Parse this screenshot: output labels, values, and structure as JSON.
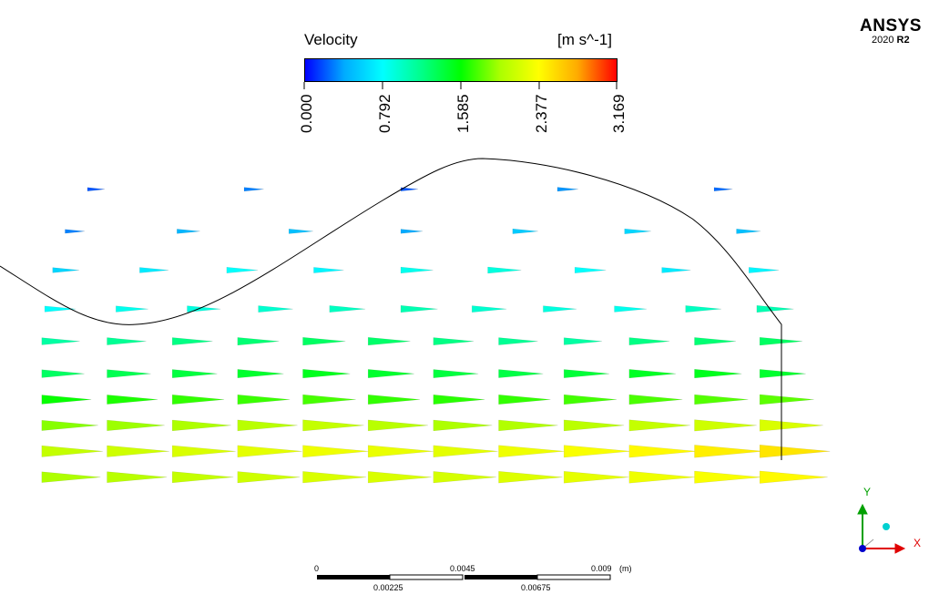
{
  "legend": {
    "title": "Velocity",
    "unit": "[m s^-1]",
    "ticks": [
      "0.000",
      "0.792",
      "1.585",
      "2.377",
      "3.169"
    ],
    "colormap": [
      "#0000ff",
      "#00aaff",
      "#00ffff",
      "#00ff88",
      "#00ff00",
      "#aaff00",
      "#ffff00",
      "#ffaa00",
      "#ff0000"
    ]
  },
  "logo": {
    "name": "ANSYS",
    "year": "2020",
    "release": "R2"
  },
  "scale_bar": {
    "top_labels": [
      "0",
      "0.0045",
      "0.009"
    ],
    "bottom_labels": [
      "0.00225",
      "0.00675"
    ],
    "unit": "(m)"
  },
  "axes": {
    "x_label": "X",
    "y_label": "Y",
    "x_color": "#e00000",
    "y_color": "#00a000",
    "z_color": "#0000cc",
    "marker_color": "#00d0d0"
  },
  "vector_plot": {
    "min_velocity": 0.0,
    "max_velocity": 3.169,
    "rows": [
      {
        "band": 0.05,
        "values": [
          0.2,
          0.3,
          0.2,
          0.35,
          0.25
        ]
      },
      {
        "band": 0.18,
        "values": [
          0.3,
          0.45,
          0.5,
          0.4,
          0.55,
          0.6,
          0.5
        ]
      },
      {
        "band": 0.3,
        "values": [
          0.6,
          0.7,
          0.8,
          0.75,
          0.85,
          0.9,
          0.8,
          0.7,
          0.75
        ]
      },
      {
        "band": 0.42,
        "values": [
          0.8,
          0.85,
          0.9,
          0.95,
          1.0,
          1.05,
          0.95,
          0.9,
          0.85,
          1.0,
          1.05
        ]
      },
      {
        "band": 0.52,
        "values": [
          1.1,
          1.15,
          1.2,
          1.25,
          1.3,
          1.28,
          1.2,
          1.15,
          1.1,
          1.2,
          1.25,
          1.3
        ]
      },
      {
        "band": 0.62,
        "values": [
          1.3,
          1.35,
          1.4,
          1.45,
          1.5,
          1.45,
          1.4,
          1.38,
          1.42,
          1.48,
          1.5,
          1.45
        ]
      },
      {
        "band": 0.7,
        "values": [
          1.6,
          1.65,
          1.7,
          1.72,
          1.75,
          1.7,
          1.68,
          1.7,
          1.74,
          1.76,
          1.78,
          1.8
        ]
      },
      {
        "band": 0.78,
        "values": [
          1.9,
          1.95,
          2.0,
          2.05,
          2.1,
          2.05,
          2.0,
          2.02,
          2.06,
          2.1,
          2.15,
          2.2
        ]
      },
      {
        "band": 0.86,
        "values": [
          2.1,
          2.15,
          2.2,
          2.25,
          2.3,
          2.28,
          2.25,
          2.3,
          2.35,
          2.4,
          2.45,
          2.5
        ]
      },
      {
        "band": 0.94,
        "values": [
          2.0,
          2.05,
          2.1,
          2.15,
          2.2,
          2.2,
          2.18,
          2.22,
          2.26,
          2.3,
          2.35,
          2.4
        ]
      }
    ]
  }
}
